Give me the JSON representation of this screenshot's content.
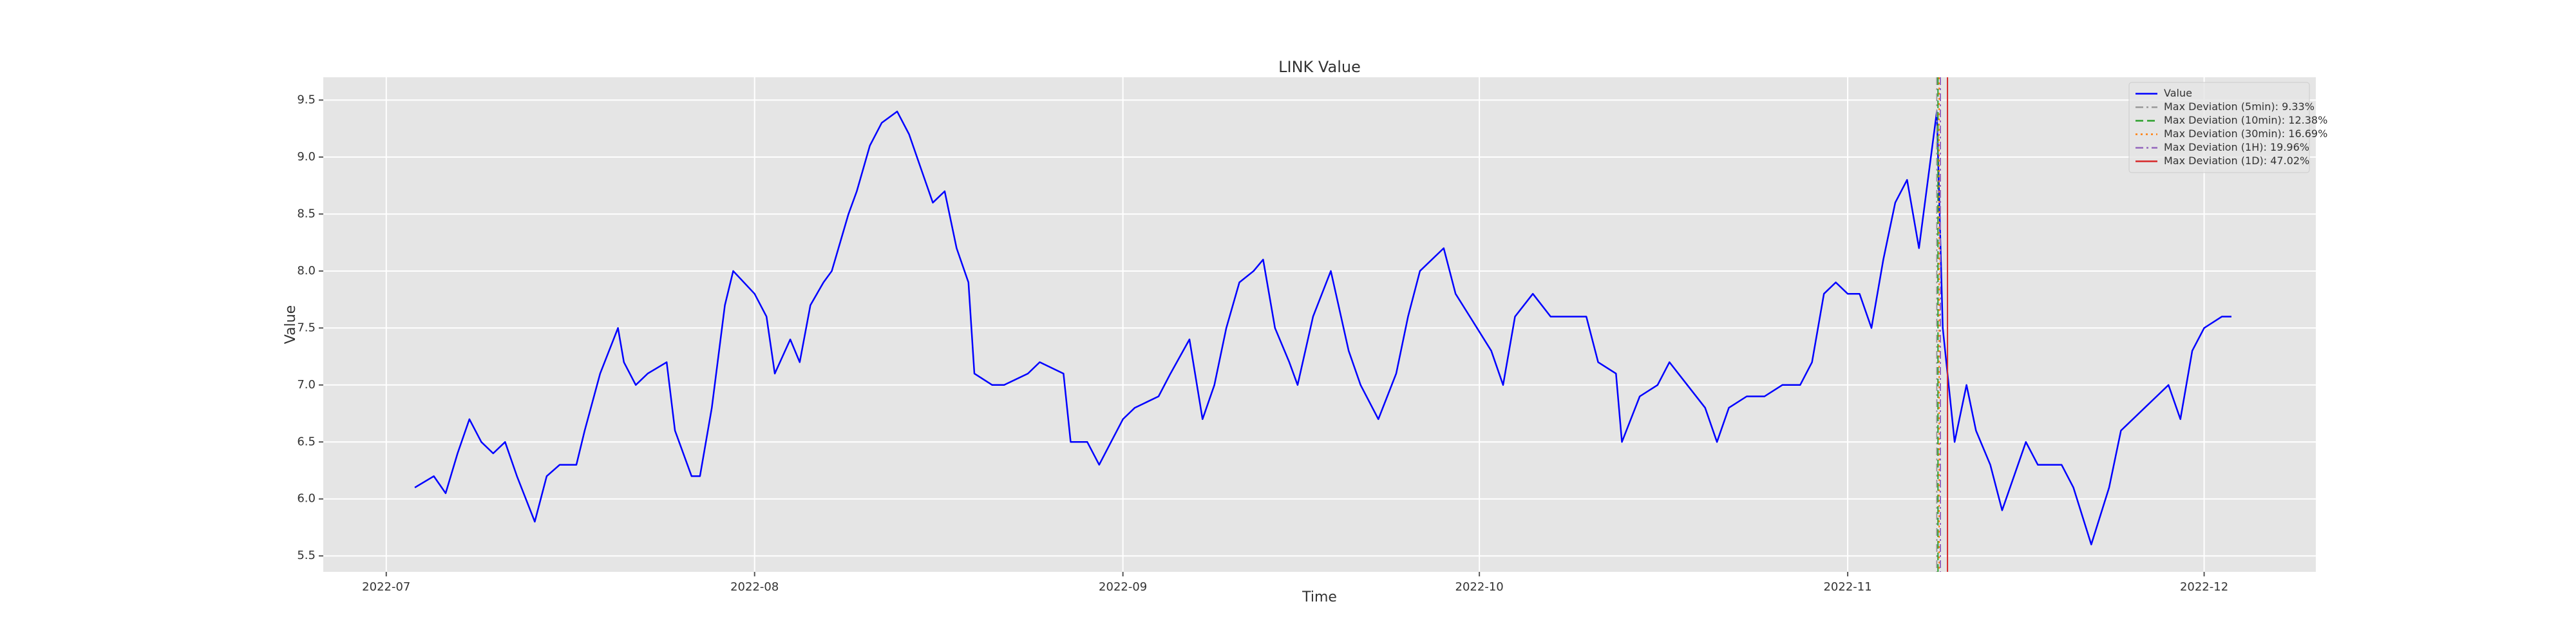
{
  "chart_data": {
    "type": "line",
    "title": "LINK Value",
    "x_label": "Time",
    "y_label": "Value",
    "x": [
      19176.4,
      19178,
      19179,
      19180,
      19181,
      19182,
      19183,
      19184,
      19185,
      19186.5,
      19187.5,
      19188.6,
      19190,
      19190.7,
      19192,
      19193.5,
      19194,
      19195,
      19196,
      19197.6,
      19198.3,
      19199.7,
      19200.4,
      19201.4,
      19202.5,
      19203.2,
      19205,
      19206,
      19206.7,
      19208,
      19208.8,
      19209.7,
      19210.8,
      19211.5,
      19212.9,
      19213.6,
      19214.7,
      19215.7,
      19217,
      19218,
      19219,
      19220,
      19221,
      19222,
      19223,
      19223.5,
      19225,
      19226,
      19228,
      19229,
      19231,
      19231.6,
      19233,
      19234,
      19235,
      19236,
      19237,
      19239,
      19240,
      19241.6,
      19242.7,
      19243.7,
      19244.7,
      19245.8,
      19247,
      19247.8,
      19248.8,
      19250,
      19250.7,
      19252,
      19253.5,
      19255,
      19256,
      19257.5,
      19259,
      19260,
      19261,
      19263,
      19264,
      19265.8,
      19267,
      19268,
      19269,
      19270.5,
      19272,
      19273,
      19275,
      19276,
      19277.5,
      19278,
      19279.5,
      19281,
      19282,
      19283.5,
      19285,
      19286,
      19287,
      19288.5,
      19290,
      19291.5,
      19293,
      19294,
      19295,
      19296,
      19297,
      19298,
      19299,
      19300,
      19301,
      19302,
      19303,
      19304.5,
      19305,
      19306,
      19307,
      19307.8,
      19309,
      19310,
      19312,
      19313,
      19315,
      19316,
      19317.5,
      19319,
      19320,
      19322,
      19323,
      19324,
      19325,
      19326,
      19327,
      19328.5,
      19329.3
    ],
    "series": [
      {
        "name": "Value",
        "color": "#0000ff",
        "values": [
          6.1,
          6.2,
          6.05,
          6.4,
          6.7,
          6.5,
          6.4,
          6.5,
          6.2,
          5.8,
          6.2,
          6.3,
          6.3,
          6.6,
          7.1,
          7.5,
          7.2,
          7.0,
          7.1,
          7.2,
          6.6,
          6.2,
          6.2,
          6.8,
          7.7,
          8.0,
          7.8,
          7.6,
          7.1,
          7.4,
          7.2,
          7.7,
          7.9,
          8.0,
          8.5,
          8.7,
          9.1,
          9.3,
          9.4,
          9.2,
          8.9,
          8.6,
          8.7,
          8.2,
          7.9,
          7.1,
          7.0,
          7.0,
          7.1,
          7.2,
          7.1,
          6.5,
          6.5,
          6.3,
          6.5,
          6.7,
          6.8,
          6.9,
          7.1,
          7.4,
          6.7,
          7.0,
          7.5,
          7.9,
          8.0,
          8.1,
          7.5,
          7.2,
          7.0,
          7.6,
          8.0,
          7.3,
          7.0,
          6.7,
          7.1,
          7.6,
          8.0,
          8.2,
          7.8,
          7.5,
          7.3,
          7.0,
          7.6,
          7.8,
          7.6,
          7.6,
          7.6,
          7.2,
          7.1,
          6.5,
          6.9,
          7.0,
          7.2,
          7.0,
          6.8,
          6.5,
          6.8,
          6.9,
          6.9,
          7.0,
          7.0,
          7.2,
          7.8,
          7.9,
          7.8,
          7.8,
          7.5,
          8.1,
          8.6,
          8.8,
          8.2,
          9.4,
          7.5,
          6.5,
          7.0,
          6.6,
          6.3,
          5.9,
          6.5,
          6.3,
          6.3,
          6.1,
          5.6,
          6.1,
          6.6,
          6.8,
          6.9,
          7.0,
          6.7,
          7.3,
          7.5,
          7.6,
          7.6
        ]
      }
    ],
    "vlines": [
      {
        "name": "Max Deviation (5min): 9.33%",
        "x": 19304.5,
        "color": "#999999",
        "dash": "dashdot"
      },
      {
        "name": "Max Deviation (10min): 12.38%",
        "x": 19304.6,
        "color": "#2ca02c",
        "dash": "dashed"
      },
      {
        "name": "Max Deviation (30min): 16.69%",
        "x": 19304.7,
        "color": "#ff7f0e",
        "dash": "dotted"
      },
      {
        "name": "Max Deviation (1H): 19.96%",
        "x": 19304.8,
        "color": "#9467bd",
        "dash": "dashdot"
      },
      {
        "name": "Max Deviation (1D): 47.02%",
        "x": 19305.4,
        "color": "#d62728",
        "dash": "solid"
      }
    ],
    "xlim": [
      19168.7,
      19336.4
    ],
    "xticks": [
      {
        "value": 19174,
        "label": "2022-07"
      },
      {
        "value": 19205,
        "label": "2022-08"
      },
      {
        "value": 19236,
        "label": "2022-09"
      },
      {
        "value": 19266,
        "label": "2022-10"
      },
      {
        "value": 19297,
        "label": "2022-11"
      },
      {
        "value": 19327,
        "label": "2022-12"
      }
    ],
    "ylim": [
      5.36,
      9.7
    ],
    "yticks": [
      5.5,
      {
        "value": 6,
        "label": "6.0"
      },
      6.5,
      {
        "value": 7,
        "label": "7.0"
      },
      7.5,
      {
        "value": 8,
        "label": "8.0"
      },
      8.5,
      {
        "value": 9,
        "label": "9.0"
      },
      9.5
    ],
    "grid": true,
    "legend": "upper right"
  }
}
